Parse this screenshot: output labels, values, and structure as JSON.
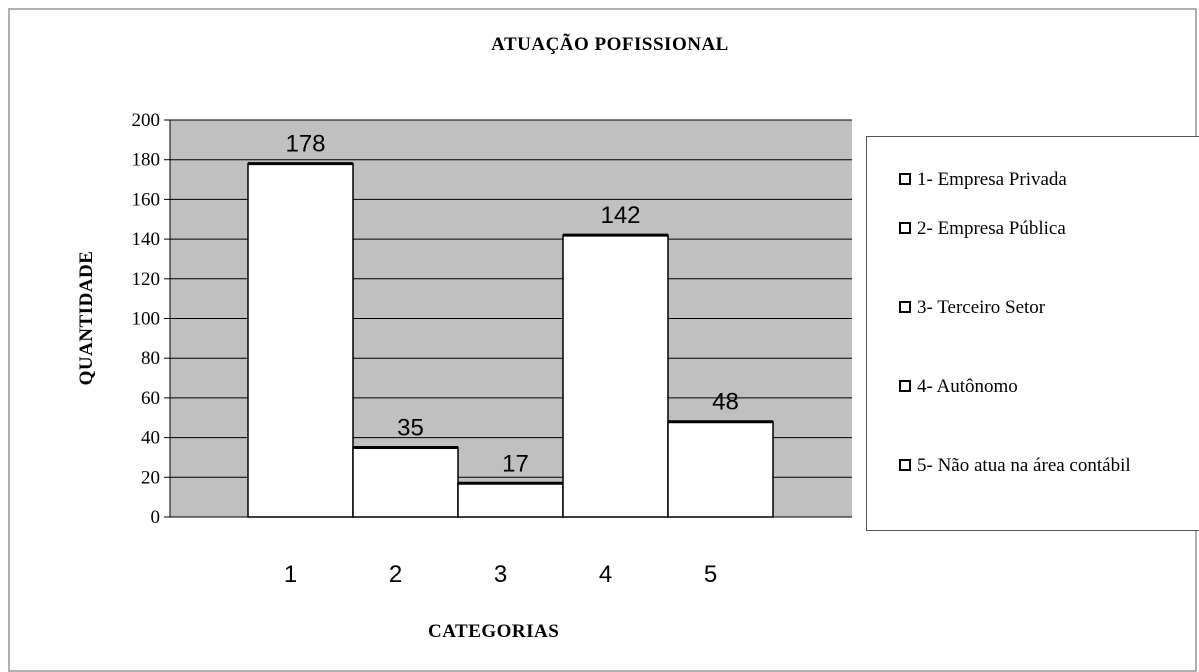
{
  "chart_data": {
    "type": "bar",
    "title": "ATUAÇÃO POFISSIONAL",
    "xlabel": "CATEGORIAS",
    "ylabel": "QUANTIDADE",
    "categories": [
      "1",
      "2",
      "3",
      "4",
      "5"
    ],
    "values": [
      178,
      35,
      17,
      142,
      48
    ],
    "ylim": [
      0,
      200
    ],
    "yticks": [
      0,
      20,
      40,
      60,
      80,
      100,
      120,
      140,
      160,
      180,
      200
    ],
    "grid": true,
    "legend_position": "right",
    "legend": [
      "1- Empresa Privada",
      "2- Empresa Pública",
      "3- Terceiro Setor",
      "4- Autônomo",
      "5- Não atua na área contábil"
    ],
    "colors": {
      "plot_background": "#c0c0c0",
      "bar_fill": "#ffffff",
      "bar_stroke": "#000000",
      "grid": "#000000"
    }
  }
}
